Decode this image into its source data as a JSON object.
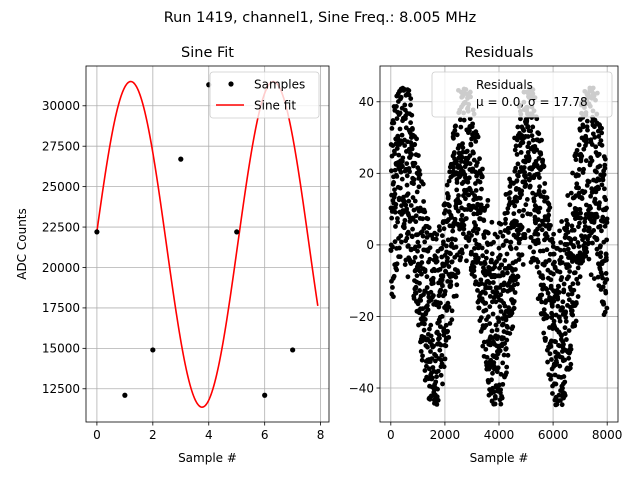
{
  "suptitle": "Run 1419, channel1, Sine Freq.: 8.005 MHz",
  "chart_data": [
    {
      "type": "line",
      "title": "Sine Fit",
      "xlabel": "Sample #",
      "ylabel": "ADC Counts",
      "xlim": [
        -0.39,
        8.3
      ],
      "ylim": [
        10445,
        32460
      ],
      "xticks": [
        0,
        2,
        4,
        6,
        8
      ],
      "xtick_labels": [
        "0",
        "2",
        "4",
        "6",
        "8"
      ],
      "yticks": [
        12500,
        15000,
        17500,
        20000,
        22500,
        25000,
        27500,
        30000
      ],
      "ytick_labels": [
        "12500",
        "15000",
        "17500",
        "20000",
        "22500",
        "25000",
        "27500",
        "30000"
      ],
      "grid": true,
      "legend_position": "top-right",
      "series": [
        {
          "name": "Samples",
          "kind": "scatter",
          "color": "#000000",
          "x": [
            0,
            1,
            2,
            3,
            4,
            5,
            6,
            7
          ],
          "y": [
            22200,
            12100,
            14900,
            26700,
            31300,
            22200,
            12100,
            14900
          ]
        },
        {
          "name": "Sine fit",
          "kind": "line",
          "color": "#ff0000",
          "function": {
            "offset": 21431,
            "amplitude": 10070,
            "period": 5.1,
            "phase_sample": 0.0,
            "phase_offset_rad": 0.0797,
            "x_start": 0,
            "x_end": 7.9
          }
        }
      ]
    },
    {
      "type": "scatter",
      "title": "Residuals",
      "xlabel": "Sample #",
      "ylabel": "",
      "xlim": [
        -400,
        8400
      ],
      "ylim": [
        -49.5,
        50
      ],
      "xticks": [
        0,
        2000,
        4000,
        6000,
        8000
      ],
      "xtick_labels": [
        "0",
        "2000",
        "4000",
        "6000",
        "8000"
      ],
      "yticks": [
        -40,
        -20,
        0,
        20,
        40
      ],
      "ytick_labels": [
        "−40",
        "−20",
        "0",
        "20",
        "40"
      ],
      "grid": true,
      "legend_position": "top-right",
      "legend_title": "Residuals",
      "legend_stats": "μ = 0.0, σ = 17.78",
      "marker_color": "#000000",
      "n_points": 8000,
      "mean": 0.0,
      "std": 17.78,
      "envelope_period": 2300,
      "envelope_min": -45,
      "envelope_max": 44
    }
  ]
}
